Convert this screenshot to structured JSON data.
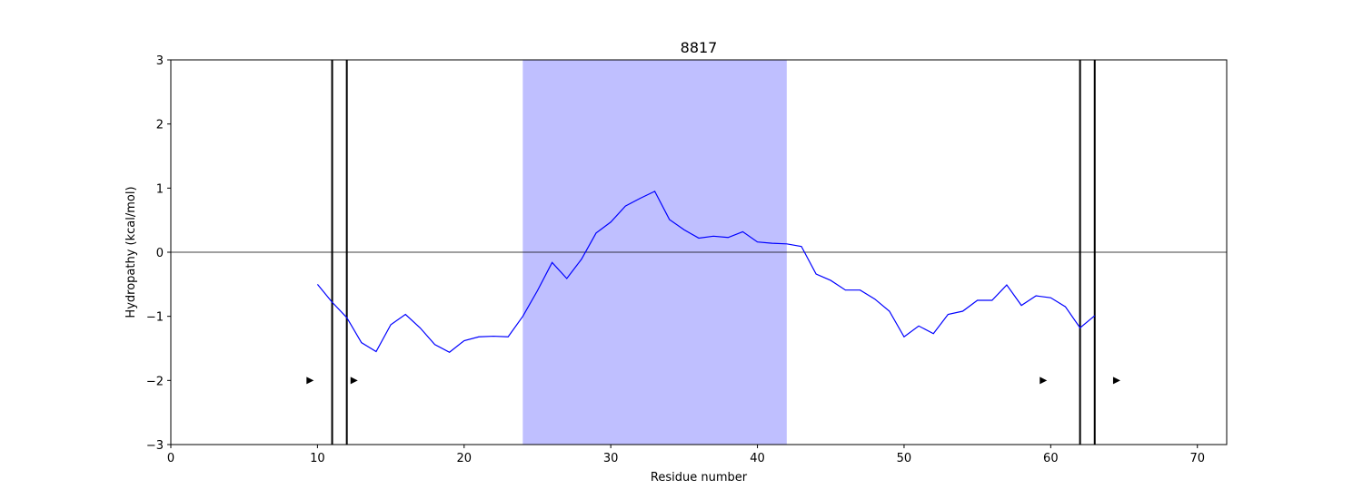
{
  "chart_data": {
    "type": "line",
    "title": "8817",
    "xlabel": "Residue number",
    "ylabel": "Hydropathy (kcal/mol)",
    "xlim": [
      0,
      72
    ],
    "ylim": [
      -3,
      3
    ],
    "xticks": [
      0,
      10,
      20,
      30,
      40,
      50,
      60,
      70
    ],
    "yticks": [
      -3,
      -2,
      -1,
      0,
      1,
      2,
      3
    ],
    "xtick_labels": [
      "0",
      "10",
      "20",
      "30",
      "40",
      "50",
      "60",
      "70"
    ],
    "ytick_labels": [
      "−3",
      "−2",
      "−1",
      "0",
      "1",
      "2",
      "3"
    ],
    "zero_line": 0,
    "line_color": "#0000ff",
    "shaded_region": {
      "x_start": 24,
      "x_end": 42,
      "color": "#bfbfff"
    },
    "vertical_lines": [
      11,
      12,
      62,
      63
    ],
    "markers": [
      {
        "x": 9.5,
        "y": -2
      },
      {
        "x": 12.5,
        "y": -2
      },
      {
        "x": 59.5,
        "y": -2
      },
      {
        "x": 64.5,
        "y": -2
      }
    ],
    "series": [
      {
        "x": [
          10,
          11,
          12,
          13,
          14,
          15,
          16,
          17,
          18,
          19,
          20,
          21,
          22,
          23,
          24,
          25,
          26,
          27,
          28,
          29,
          30,
          31,
          32,
          33,
          34,
          35,
          36,
          37,
          38,
          39,
          40,
          41,
          42,
          43,
          44,
          45,
          46,
          47,
          48,
          49,
          50,
          51,
          52,
          53,
          54,
          55,
          56,
          57,
          58,
          59,
          60,
          61,
          62,
          63
        ],
        "values": [
          -0.5,
          -0.78,
          -1.02,
          -1.41,
          -1.55,
          -1.13,
          -0.97,
          -1.18,
          -1.44,
          -1.56,
          -1.38,
          -1.32,
          -1.31,
          -1.32,
          -1.0,
          -0.6,
          -0.16,
          -0.41,
          -0.11,
          0.3,
          0.47,
          0.72,
          0.84,
          0.95,
          0.51,
          0.35,
          0.22,
          0.25,
          0.23,
          0.32,
          0.16,
          0.14,
          0.13,
          0.09,
          -0.34,
          -0.44,
          -0.59,
          -0.59,
          -0.73,
          -0.92,
          -1.32,
          -1.15,
          -1.27,
          -0.97,
          -0.92,
          -0.75,
          -0.75,
          -0.51,
          -0.83,
          -0.68,
          -0.71,
          -0.85,
          -1.18,
          -0.99
        ]
      }
    ]
  }
}
